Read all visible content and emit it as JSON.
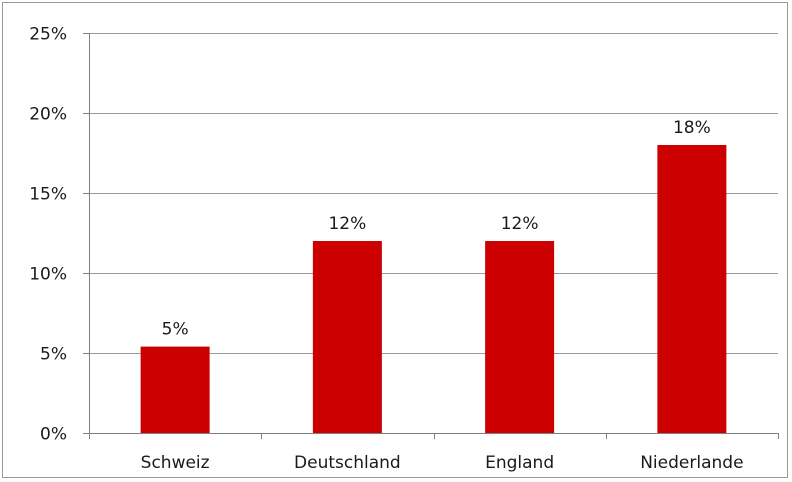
{
  "chart_data": {
    "type": "bar",
    "categories": [
      "Schweiz",
      "Deutschland",
      "England",
      "Niederlande"
    ],
    "values": [
      5.4,
      12,
      12,
      18
    ],
    "data_labels": [
      "5%",
      "12%",
      "12%",
      "18%"
    ],
    "yticks": [
      0,
      5,
      10,
      15,
      20,
      25
    ],
    "ytick_labels": [
      "0%",
      "5%",
      "10%",
      "15%",
      "20%",
      "25%"
    ],
    "ylim": [
      0,
      25
    ],
    "grid": true,
    "legend": "none",
    "title": "",
    "xlabel": "",
    "ylabel": "",
    "colors": {
      "bar": "#cc0000",
      "grid": "#9a9a9a",
      "axis": "#7f7f7f"
    }
  }
}
